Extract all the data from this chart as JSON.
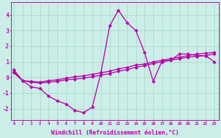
{
  "background_color": "#cceee8",
  "grid_color": "#aaddcc",
  "line_color": "#bb00aa",
  "marker": "D",
  "markersize": 2.5,
  "linewidth": 1.0,
  "xlabel": "Windchill (Refroidissement éolien,°C)",
  "xlabel_fontsize": 6,
  "xtick_labels": [
    "0",
    "1",
    "2",
    "3",
    "4",
    "5",
    "6",
    "7",
    "8",
    "9",
    "10",
    "11",
    "12",
    "13",
    "14",
    "15",
    "16",
    "17",
    "18",
    "19",
    "20",
    "21",
    "22",
    "23"
  ],
  "ytick_labels": [
    "-2",
    "-1",
    "0",
    "1",
    "2",
    "3",
    "4"
  ],
  "ylim": [
    -2.7,
    4.8
  ],
  "xlim": [
    -0.3,
    23.5
  ],
  "curve1_x": [
    0,
    1,
    2,
    3,
    4,
    5,
    6,
    7,
    8,
    9,
    10,
    11,
    12,
    13,
    14,
    15,
    16,
    17,
    18,
    19,
    20,
    21,
    22,
    23
  ],
  "curve1_y": [
    0.5,
    -0.2,
    -0.6,
    -0.7,
    -1.2,
    -1.5,
    -1.7,
    -2.1,
    -2.25,
    -1.9,
    0.3,
    3.3,
    4.3,
    3.5,
    3.0,
    1.6,
    -0.25,
    1.05,
    1.1,
    1.5,
    1.5,
    1.4,
    1.4,
    1.0
  ],
  "curve2_x": [
    0,
    1,
    2,
    3,
    4,
    5,
    6,
    7,
    8,
    9,
    10,
    11,
    12,
    13,
    14,
    15,
    16,
    17,
    18,
    19,
    20,
    21,
    22,
    23
  ],
  "curve2_y": [
    0.35,
    -0.2,
    -0.3,
    -0.35,
    -0.3,
    -0.25,
    -0.15,
    -0.1,
    -0.05,
    0.05,
    0.15,
    0.25,
    0.4,
    0.5,
    0.65,
    0.75,
    0.9,
    1.0,
    1.1,
    1.2,
    1.3,
    1.35,
    1.4,
    1.5
  ],
  "curve3_x": [
    0,
    1,
    2,
    3,
    4,
    5,
    6,
    7,
    8,
    9,
    10,
    11,
    12,
    13,
    14,
    15,
    16,
    17,
    18,
    19,
    20,
    21,
    22,
    23
  ],
  "curve3_y": [
    0.3,
    -0.2,
    -0.25,
    -0.3,
    -0.2,
    -0.15,
    -0.05,
    0.05,
    0.1,
    0.2,
    0.3,
    0.4,
    0.55,
    0.65,
    0.8,
    0.85,
    1.0,
    1.1,
    1.2,
    1.3,
    1.4,
    1.5,
    1.55,
    1.6
  ]
}
